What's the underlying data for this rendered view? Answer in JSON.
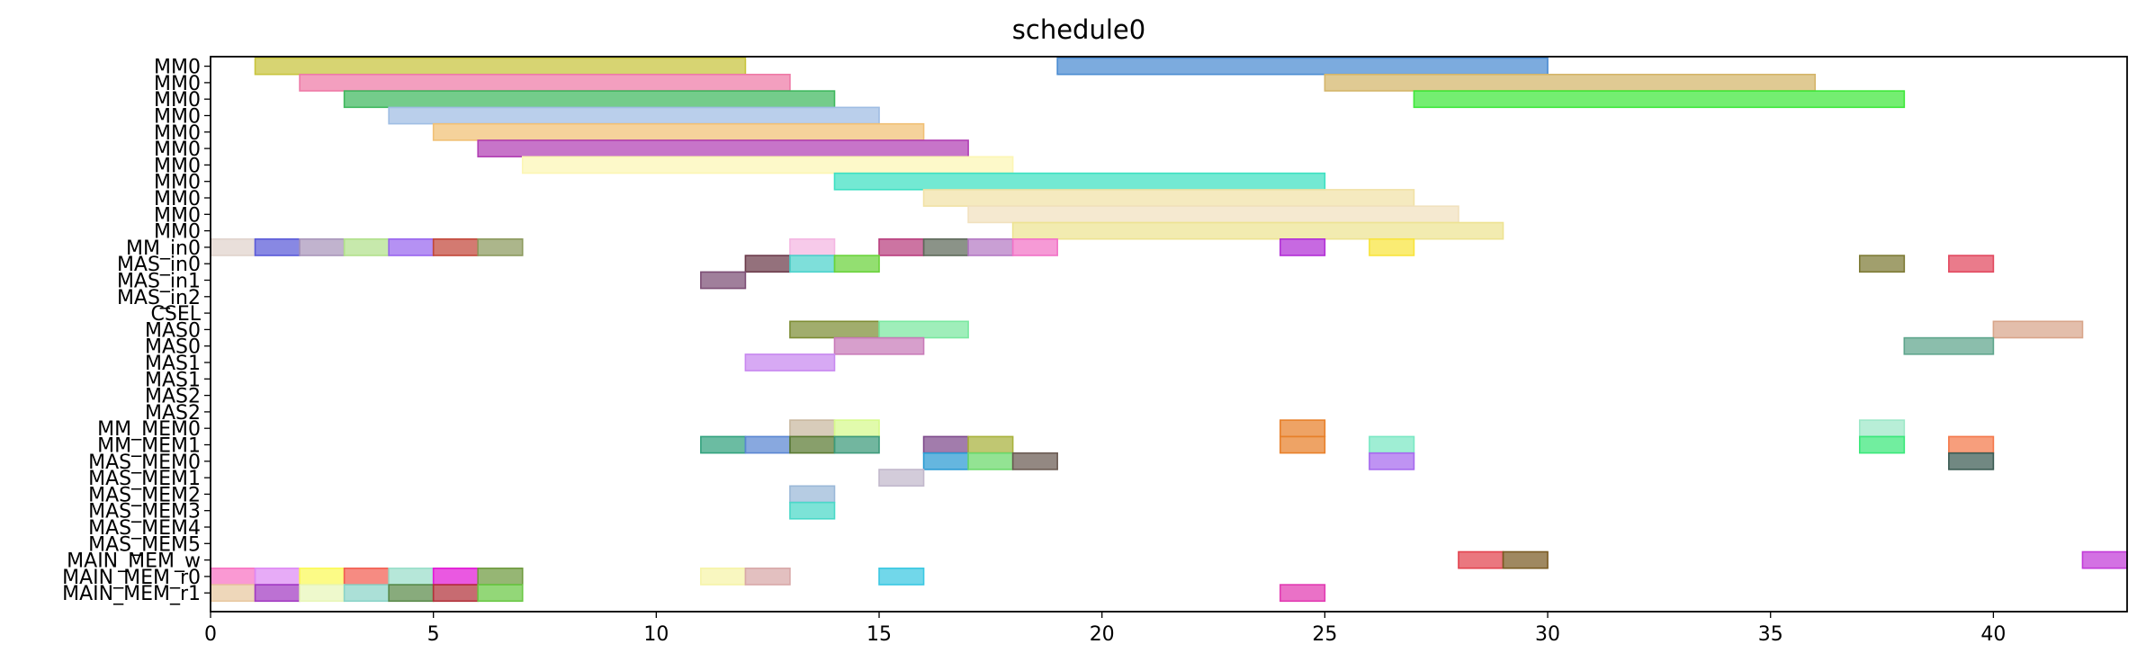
{
  "chart_data": {
    "type": "gantt",
    "title": "schedule0",
    "xlabel": "",
    "ylabel": "",
    "xlim": [
      0,
      43
    ],
    "xticks": [
      0,
      5,
      10,
      15,
      20,
      25,
      30,
      35,
      40
    ],
    "grid": false,
    "rows": [
      "MM0",
      "MM0",
      "MM0",
      "MM0",
      "MM0",
      "MM0",
      "MM0",
      "MM0",
      "MM0",
      "MM0",
      "MM0",
      "MM_in0",
      "MAS_in0",
      "MAS_in1",
      "MAS_in2",
      "CSEL",
      "MAS0",
      "MAS0",
      "MAS1",
      "MAS1",
      "MAS2",
      "MAS2",
      "MM_MEM0",
      "MM_MEM1",
      "MAS_MEM0",
      "MAS_MEM1",
      "MAS_MEM2",
      "MAS_MEM3",
      "MAS_MEM4",
      "MAS_MEM5",
      "MAIN_MEM_w",
      "MAIN_MEM_r0",
      "MAIN_MEM_r1"
    ],
    "tasks": [
      {
        "row": 0,
        "start": 1,
        "end": 12,
        "color": "#c7c43c"
      },
      {
        "row": 0,
        "start": 19,
        "end": 30,
        "color": "#4a8bd1"
      },
      {
        "row": 1,
        "start": 2,
        "end": 13,
        "color": "#ee7aa6"
      },
      {
        "row": 1,
        "start": 25,
        "end": 36,
        "color": "#d4b56a"
      },
      {
        "row": 2,
        "start": 3,
        "end": 14,
        "color": "#3fb85e"
      },
      {
        "row": 2,
        "start": 27,
        "end": 38,
        "color": "#3ee83a"
      },
      {
        "row": 3,
        "start": 4,
        "end": 15,
        "color": "#9fbde3"
      },
      {
        "row": 4,
        "start": 5,
        "end": 16,
        "color": "#f1c075"
      },
      {
        "row": 5,
        "start": 6,
        "end": 17,
        "color": "#b13fb4"
      },
      {
        "row": 6,
        "start": 7,
        "end": 18,
        "color": "#fcf6b4"
      },
      {
        "row": 7,
        "start": 14,
        "end": 25,
        "color": "#3de0c2"
      },
      {
        "row": 8,
        "start": 16,
        "end": 27,
        "color": "#f1e2a6"
      },
      {
        "row": 9,
        "start": 17,
        "end": 28,
        "color": "#f1e1be"
      },
      {
        "row": 10,
        "start": 18,
        "end": 29,
        "color": "#ede392"
      },
      {
        "row": 11,
        "start": 0,
        "end": 1,
        "color": "#e0d3cc"
      },
      {
        "row": 11,
        "start": 1,
        "end": 2,
        "color": "#5a5ad8"
      },
      {
        "row": 11,
        "start": 2,
        "end": 3,
        "color": "#a996bb"
      },
      {
        "row": 11,
        "start": 3,
        "end": 4,
        "color": "#b2e08c"
      },
      {
        "row": 11,
        "start": 4,
        "end": 5,
        "color": "#9966ee"
      },
      {
        "row": 11,
        "start": 5,
        "end": 6,
        "color": "#c2473a"
      },
      {
        "row": 11,
        "start": 6,
        "end": 7,
        "color": "#8c9a5e"
      },
      {
        "row": 11,
        "start": 13,
        "end": 14,
        "color": "#f4b6e2"
      },
      {
        "row": 11,
        "start": 15,
        "end": 16,
        "color": "#b93e7e"
      },
      {
        "row": 11,
        "start": 16,
        "end": 17,
        "color": "#5e6a5a"
      },
      {
        "row": 11,
        "start": 17,
        "end": 18,
        "color": "#b47ac4"
      },
      {
        "row": 11,
        "start": 18,
        "end": 19,
        "color": "#f273c6"
      },
      {
        "row": 11,
        "start": 24,
        "end": 25,
        "color": "#b22fd6"
      },
      {
        "row": 11,
        "start": 26,
        "end": 27,
        "color": "#f8e43d"
      },
      {
        "row": 12,
        "start": 12,
        "end": 13,
        "color": "#6b3a4a"
      },
      {
        "row": 12,
        "start": 13,
        "end": 14,
        "color": "#4cd3cc"
      },
      {
        "row": 12,
        "start": 14,
        "end": 15,
        "color": "#6ad33a"
      },
      {
        "row": 12,
        "start": 37,
        "end": 38,
        "color": "#7d7a34"
      },
      {
        "row": 12,
        "start": 39,
        "end": 40,
        "color": "#e2485e"
      },
      {
        "row": 13,
        "start": 11,
        "end": 12,
        "color": "#7c4d74"
      },
      {
        "row": 16,
        "start": 13,
        "end": 15,
        "color": "#7d8d34"
      },
      {
        "row": 16,
        "start": 15,
        "end": 17,
        "color": "#7ae8a0"
      },
      {
        "row": 16,
        "start": 40,
        "end": 42,
        "color": "#d8a58a"
      },
      {
        "row": 17,
        "start": 14,
        "end": 16,
        "color": "#c87ab8"
      },
      {
        "row": 17,
        "start": 38,
        "end": 40,
        "color": "#5ea58c"
      },
      {
        "row": 18,
        "start": 12,
        "end": 14,
        "color": "#c888f0"
      },
      {
        "row": 22,
        "start": 13,
        "end": 14,
        "color": "#c9b8a0"
      },
      {
        "row": 22,
        "start": 14,
        "end": 15,
        "color": "#d6fa8c"
      },
      {
        "row": 22,
        "start": 24,
        "end": 25,
        "color": "#e8802a"
      },
      {
        "row": 22,
        "start": 37,
        "end": 38,
        "color": "#9de8c8"
      },
      {
        "row": 23,
        "start": 11,
        "end": 12,
        "color": "#32a27e"
      },
      {
        "row": 23,
        "start": 12,
        "end": 13,
        "color": "#5a86d2"
      },
      {
        "row": 23,
        "start": 13,
        "end": 14,
        "color": "#5a7a32"
      },
      {
        "row": 23,
        "start": 14,
        "end": 15,
        "color": "#3c9a7a"
      },
      {
        "row": 23,
        "start": 16,
        "end": 17,
        "color": "#7e4a8c"
      },
      {
        "row": 23,
        "start": 17,
        "end": 18,
        "color": "#a8b23c"
      },
      {
        "row": 23,
        "start": 24,
        "end": 25,
        "color": "#e8802a"
      },
      {
        "row": 23,
        "start": 26,
        "end": 27,
        "color": "#7ae8c4"
      },
      {
        "row": 23,
        "start": 37,
        "end": 38,
        "color": "#3ae87a"
      },
      {
        "row": 23,
        "start": 39,
        "end": 40,
        "color": "#f4784a"
      },
      {
        "row": 24,
        "start": 16,
        "end": 17,
        "color": "#2a9ad2"
      },
      {
        "row": 24,
        "start": 17,
        "end": 18,
        "color": "#6ad86a"
      },
      {
        "row": 24,
        "start": 18,
        "end": 19,
        "color": "#6a5a52"
      },
      {
        "row": 24,
        "start": 26,
        "end": 27,
        "color": "#a66aee"
      },
      {
        "row": 24,
        "start": 39,
        "end": 40,
        "color": "#3a5a52"
      },
      {
        "row": 25,
        "start": 15,
        "end": 16,
        "color": "#c2b8cc"
      },
      {
        "row": 26,
        "start": 13,
        "end": 14,
        "color": "#9ab8d8"
      },
      {
        "row": 27,
        "start": 13,
        "end": 14,
        "color": "#4ad8c8"
      },
      {
        "row": 30,
        "start": 28,
        "end": 29,
        "color": "#e2424e"
      },
      {
        "row": 30,
        "start": 29,
        "end": 30,
        "color": "#7a5a22"
      },
      {
        "row": 30,
        "start": 42,
        "end": 43,
        "color": "#c23ad8"
      },
      {
        "row": 31,
        "start": 0,
        "end": 1,
        "color": "#f872c2"
      },
      {
        "row": 31,
        "start": 1,
        "end": 2,
        "color": "#de8af4"
      },
      {
        "row": 31,
        "start": 2,
        "end": 3,
        "color": "#fbfa58"
      },
      {
        "row": 31,
        "start": 3,
        "end": 4,
        "color": "#f25e52"
      },
      {
        "row": 31,
        "start": 4,
        "end": 5,
        "color": "#9adeca"
      },
      {
        "row": 31,
        "start": 5,
        "end": 6,
        "color": "#e218d6"
      },
      {
        "row": 31,
        "start": 6,
        "end": 7,
        "color": "#6e9a3e"
      },
      {
        "row": 31,
        "start": 11,
        "end": 12,
        "color": "#f6f4a8"
      },
      {
        "row": 31,
        "start": 12,
        "end": 13,
        "color": "#d8a8a8"
      },
      {
        "row": 31,
        "start": 15,
        "end": 16,
        "color": "#3ac8e2"
      },
      {
        "row": 32,
        "start": 0,
        "end": 1,
        "color": "#e8c8a0"
      },
      {
        "row": 32,
        "start": 1,
        "end": 2,
        "color": "#a23ac2"
      },
      {
        "row": 32,
        "start": 2,
        "end": 3,
        "color": "#e8f6b8"
      },
      {
        "row": 32,
        "start": 3,
        "end": 4,
        "color": "#8ad4c8"
      },
      {
        "row": 32,
        "start": 4,
        "end": 5,
        "color": "#5a8a4a"
      },
      {
        "row": 32,
        "start": 5,
        "end": 6,
        "color": "#b2323a"
      },
      {
        "row": 32,
        "start": 6,
        "end": 7,
        "color": "#6ac844"
      },
      {
        "row": 32,
        "start": 24,
        "end": 25,
        "color": "#e23ab2"
      }
    ]
  }
}
